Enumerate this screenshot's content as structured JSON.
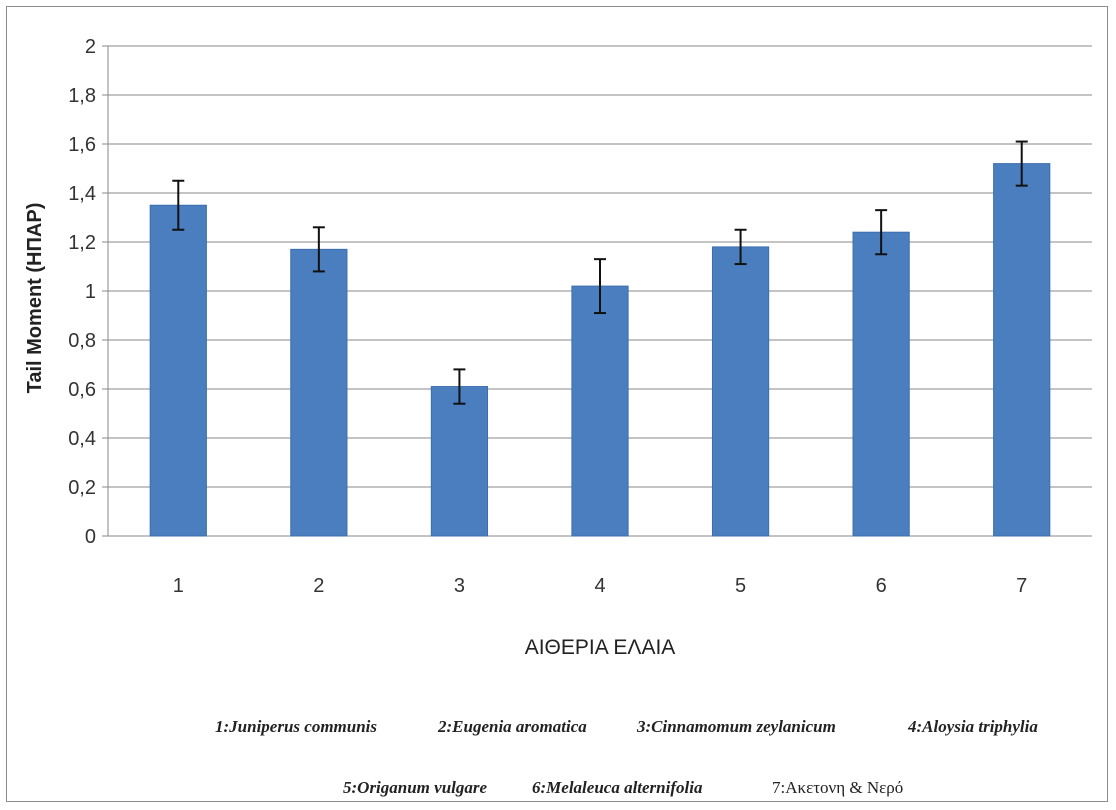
{
  "chart_data": {
    "type": "bar",
    "categories": [
      "1",
      "2",
      "3",
      "4",
      "5",
      "6",
      "7"
    ],
    "values": [
      1.35,
      1.17,
      0.61,
      1.02,
      1.18,
      1.24,
      1.52
    ],
    "error": [
      0.1,
      0.09,
      0.07,
      0.11,
      0.07,
      0.09,
      0.09
    ],
    "ylim": [
      0,
      2
    ],
    "yticks": [
      "0",
      "0,2",
      "0,4",
      "0,6",
      "0,8",
      "1",
      "1,2",
      "1,4",
      "1,6",
      "1,8",
      "2"
    ],
    "ylabel": "Tail Moment (ΗΠΑΡ)",
    "xlabel": "ΑΙΘΕΡΙΑ ΕΛΑΙΑ",
    "grid": true,
    "bar_color": "#4a7ebf",
    "legend": [
      "1:Juniperus communis",
      "2:Eugenia aromatica",
      "3:Cinnamomum zeylanicum",
      "4:Aloysia triphylia",
      "5:Origanum vulgare",
      "6:Melaleuca alternifolia",
      "7:Ακετονη & Νερό"
    ]
  }
}
